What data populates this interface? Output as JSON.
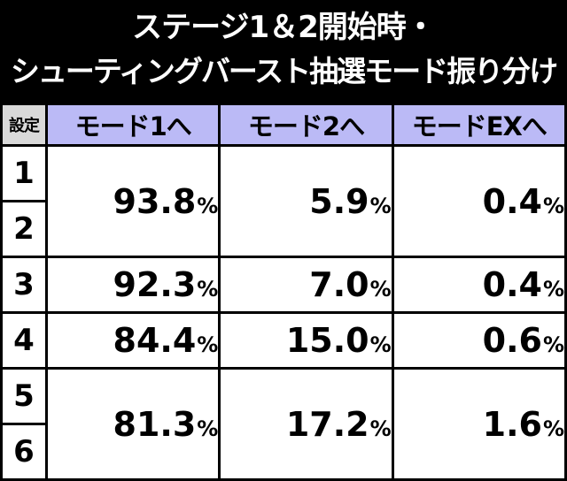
{
  "title": {
    "line1": "ステージ1＆2開始時・",
    "line2": "シューティングバースト抽選モード振り分け"
  },
  "table": {
    "headers": [
      "設定",
      "モード1へ",
      "モード2へ",
      "モードEXへ"
    ],
    "percent_sign": "%",
    "settings": [
      "1",
      "2",
      "3",
      "4",
      "5",
      "6"
    ],
    "groups": [
      {
        "settings": [
          "1",
          "2"
        ],
        "mode1": "93.8",
        "mode2": "5.9",
        "modeEX": "0.4"
      },
      {
        "settings": [
          "3"
        ],
        "mode1": "92.3",
        "mode2": "7.0",
        "modeEX": "0.4"
      },
      {
        "settings": [
          "4"
        ],
        "mode1": "84.4",
        "mode2": "15.0",
        "modeEX": "0.6"
      },
      {
        "settings": [
          "5",
          "6"
        ],
        "mode1": "81.3",
        "mode2": "17.2",
        "modeEX": "1.6"
      }
    ]
  }
}
